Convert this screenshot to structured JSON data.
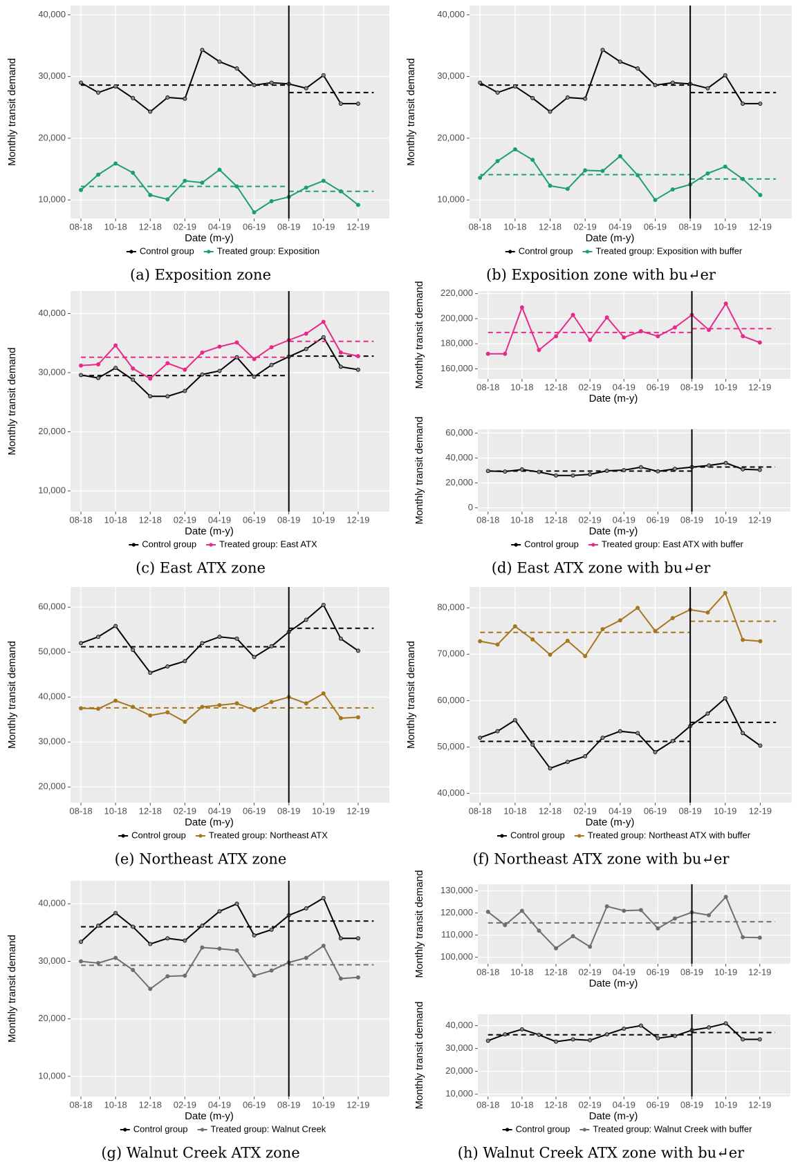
{
  "chart_data": [
    {
      "type": "line",
      "xlabel": "Date (m-y)",
      "ylabel": "Monthly transit demand",
      "caption": "(a) Exposition zone",
      "vline": "08-19",
      "grid": true,
      "categories": [
        "08-18",
        null,
        "10-18",
        null,
        "12-18",
        null,
        "02-19",
        null,
        "04-19",
        null,
        "06-19",
        null,
        "08-19",
        null,
        "10-19",
        null,
        "12-19"
      ],
      "ylim": [
        7000,
        41500
      ],
      "yticks": [
        {
          "value": 10000,
          "label": "10,000"
        },
        {
          "value": 20000,
          "label": "20,000"
        },
        {
          "value": 30000,
          "label": "30,000"
        },
        {
          "value": 40000,
          "label": "40,000"
        }
      ],
      "series": [
        {
          "name": "Control group",
          "color": "#000000",
          "mean_pre": 28600,
          "mean_post": 27400,
          "values": [
            29000,
            27400,
            28400,
            26500,
            24300,
            26600,
            26400,
            34300,
            32400,
            31300,
            28600,
            29000,
            28800,
            28100,
            30200,
            25600,
            25600
          ]
        },
        {
          "name": "Treated group: Exposition",
          "color": "#1b9e77",
          "mean_pre": 12200,
          "mean_post": 11400,
          "values": [
            11600,
            14100,
            15900,
            14400,
            10800,
            10100,
            13100,
            12800,
            14900,
            12200,
            8000,
            9800,
            10500,
            12000,
            13100,
            11400,
            9200
          ]
        }
      ]
    },
    {
      "type": "line",
      "xlabel": "Date (m-y)",
      "ylabel": "Monthly transit demand",
      "caption": "(b) Exposition zone with bu↵er",
      "vline": "08-19",
      "grid": true,
      "categories": [
        "08-18",
        null,
        "10-18",
        null,
        "12-18",
        null,
        "02-19",
        null,
        "04-19",
        null,
        "06-19",
        null,
        "08-19",
        null,
        "10-19",
        null,
        "12-19"
      ],
      "ylim": [
        7000,
        41500
      ],
      "yticks": [
        {
          "value": 10000,
          "label": "10,000"
        },
        {
          "value": 20000,
          "label": "20,000"
        },
        {
          "value": 30000,
          "label": "30,000"
        },
        {
          "value": 40000,
          "label": "40,000"
        }
      ],
      "series": [
        {
          "name": "Control group",
          "color": "#000000",
          "mean_pre": 28600,
          "mean_post": 27400,
          "values": [
            29000,
            27400,
            28400,
            26500,
            24300,
            26600,
            26400,
            34300,
            32400,
            31300,
            28600,
            29000,
            28800,
            28100,
            30200,
            25600,
            25600
          ]
        },
        {
          "name": "Treated group: Exposition with buffer",
          "color": "#1b9e77",
          "mean_pre": 14100,
          "mean_post": 13400,
          "values": [
            13600,
            16300,
            18200,
            16500,
            12300,
            11800,
            14800,
            14700,
            17100,
            14000,
            10000,
            11700,
            12500,
            14300,
            15400,
            13400,
            10800
          ]
        }
      ]
    },
    {
      "type": "line",
      "xlabel": "Date (m-y)",
      "ylabel": "Monthly transit demand",
      "caption": "(c) East ATX zone",
      "vline": "08-19",
      "grid": true,
      "categories": [
        "08-18",
        null,
        "10-18",
        null,
        "12-18",
        null,
        "02-19",
        null,
        "04-19",
        null,
        "06-19",
        null,
        "08-19",
        null,
        "10-19",
        null,
        "12-19"
      ],
      "ylim": [
        6500,
        43800
      ],
      "yticks": [
        {
          "value": 10000,
          "label": "10,000"
        },
        {
          "value": 20000,
          "label": "20,000"
        },
        {
          "value": 30000,
          "label": "30,000"
        },
        {
          "value": 40000,
          "label": "40,000"
        }
      ],
      "series": [
        {
          "name": "Control group",
          "color": "#000000",
          "mean_pre": 29500,
          "mean_post": 32800,
          "values": [
            29600,
            29100,
            30800,
            28800,
            26000,
            26000,
            26900,
            29700,
            30300,
            32600,
            29300,
            31300,
            32700,
            34000,
            36000,
            31000,
            30500
          ]
        },
        {
          "name": "Treated group: East ATX",
          "color": "#e7298a",
          "mean_pre": 32600,
          "mean_post": 35300,
          "values": [
            31200,
            31400,
            34600,
            30700,
            29000,
            31600,
            30500,
            33400,
            34400,
            35100,
            32300,
            34300,
            35500,
            36600,
            38600,
            33400,
            32800
          ]
        }
      ]
    },
    {
      "type": "line",
      "xlabel": "Date (m-y)",
      "ylabel": "Monthly transit demand",
      "vline": "08-19",
      "grid": true,
      "categories": [
        "08-18",
        null,
        "10-18",
        null,
        "12-18",
        null,
        "02-19",
        null,
        "04-19",
        null,
        "06-19",
        null,
        "08-19",
        null,
        "10-19",
        null,
        "12-19"
      ],
      "ylim": [
        152000,
        222000
      ],
      "yticks": [
        {
          "value": 160000,
          "label": "160,000"
        },
        {
          "value": 180000,
          "label": "180,000"
        },
        {
          "value": 200000,
          "label": "200,000"
        },
        {
          "value": 220000,
          "label": "220,000"
        }
      ],
      "series": [
        {
          "name": "Treated group: East ATX with buffer",
          "color": "#e7298a",
          "mean_pre": 189000,
          "mean_post": 192000,
          "values": [
            172000,
            172000,
            209000,
            175000,
            186000,
            203000,
            183000,
            201000,
            185000,
            190000,
            186000,
            193000,
            203000,
            191000,
            212000,
            186000,
            181000
          ]
        }
      ]
    },
    {
      "type": "line",
      "xlabel": "Date (m-y)",
      "ylabel": "Monthly transit demand",
      "caption": "(d) East ATX zone with bu↵er",
      "vline": "08-19",
      "grid": true,
      "categories": [
        "08-18",
        null,
        "10-18",
        null,
        "12-18",
        null,
        "02-19",
        null,
        "04-19",
        null,
        "06-19",
        null,
        "08-19",
        null,
        "10-19",
        null,
        "12-19"
      ],
      "ylim": [
        -3000,
        63000
      ],
      "yticks": [
        0,
        {
          "value": 20000,
          "label": "20,000"
        },
        {
          "value": 40000,
          "label": "40,000"
        },
        {
          "value": 60000,
          "label": "60,000"
        }
      ],
      "series": [
        {
          "name": "Control group",
          "color": "#000000",
          "mean_pre": 29500,
          "mean_post": 32800,
          "values": [
            29600,
            29100,
            30800,
            28800,
            26000,
            26000,
            26900,
            29700,
            30300,
            32600,
            29300,
            31300,
            32700,
            34000,
            36000,
            31000,
            30500
          ]
        }
      ]
    },
    {
      "type": "line",
      "xlabel": "Date (m-y)",
      "ylabel": "Monthly transit demand",
      "caption": "(e) Northeast ATX zone",
      "vline": "08-19",
      "grid": true,
      "categories": [
        "08-18",
        null,
        "10-18",
        null,
        "12-18",
        null,
        "02-19",
        null,
        "04-19",
        null,
        "06-19",
        null,
        "08-19",
        null,
        "10-19",
        null,
        "12-19"
      ],
      "ylim": [
        16500,
        64500
      ],
      "yticks": [
        {
          "value": 20000,
          "label": "20,000"
        },
        {
          "value": 30000,
          "label": "30,000"
        },
        {
          "value": 40000,
          "label": "40,000"
        },
        {
          "value": 50000,
          "label": "50,000"
        },
        {
          "value": 60000,
          "label": "60,000"
        }
      ],
      "series": [
        {
          "name": "Control group",
          "color": "#000000",
          "mean_pre": 51200,
          "mean_post": 55300,
          "values": [
            52000,
            53400,
            55800,
            50500,
            45400,
            46800,
            48000,
            52000,
            53400,
            53000,
            48900,
            51300,
            54500,
            57200,
            60500,
            53000,
            50300
          ]
        },
        {
          "name": "Treated group: Northeast ATX",
          "color": "#a6761d",
          "mean_pre": 37600,
          "mean_post": 37600,
          "values": [
            37500,
            37400,
            39200,
            37800,
            35900,
            36600,
            34500,
            37800,
            38200,
            38600,
            37100,
            38900,
            40000,
            38600,
            40800,
            35300,
            35500
          ]
        }
      ]
    },
    {
      "type": "line",
      "xlabel": "Date (m-y)",
      "ylabel": "Monthly transit demand",
      "caption": "(f) Northeast ATX zone with bu↵er",
      "vline": "08-19",
      "grid": true,
      "categories": [
        "08-18",
        null,
        "10-18",
        null,
        "12-18",
        null,
        "02-19",
        null,
        "04-19",
        null,
        "06-19",
        null,
        "08-19",
        null,
        "10-19",
        null,
        "12-19"
      ],
      "ylim": [
        38000,
        84500
      ],
      "yticks": [
        {
          "value": 40000,
          "label": "40,000"
        },
        {
          "value": 50000,
          "label": "50,000"
        },
        {
          "value": 60000,
          "label": "60,000"
        },
        {
          "value": 70000,
          "label": "70,000"
        },
        {
          "value": 80000,
          "label": "80,000"
        }
      ],
      "series": [
        {
          "name": "Control group",
          "color": "#000000",
          "mean_pre": 51200,
          "mean_post": 55300,
          "values": [
            52000,
            53400,
            55800,
            50500,
            45400,
            46800,
            48000,
            52000,
            53400,
            53000,
            48900,
            51300,
            54500,
            57200,
            60500,
            53000,
            50300
          ]
        },
        {
          "name": "Treated group: Northeast ATX with buffer",
          "color": "#a6761d",
          "mean_pre": 74700,
          "mean_post": 77100,
          "values": [
            72800,
            72100,
            76000,
            73200,
            69900,
            72900,
            69600,
            75400,
            77300,
            80000,
            75000,
            77800,
            79600,
            79000,
            83200,
            73100,
            72800
          ]
        }
      ]
    },
    {
      "type": "line",
      "xlabel": "Date (m-y)",
      "ylabel": "Monthly transit demand",
      "caption": "(g) Walnut Creek ATX zone",
      "vline": "08-19",
      "grid": true,
      "categories": [
        "08-18",
        null,
        "10-18",
        null,
        "12-18",
        null,
        "02-19",
        null,
        "04-19",
        null,
        "06-19",
        null,
        "08-19",
        null,
        "10-19",
        null,
        "12-19"
      ],
      "ylim": [
        6500,
        44000
      ],
      "yticks": [
        {
          "value": 10000,
          "label": "10,000"
        },
        {
          "value": 20000,
          "label": "20,000"
        },
        {
          "value": 30000,
          "label": "30,000"
        },
        {
          "value": 40000,
          "label": "40,000"
        }
      ],
      "series": [
        {
          "name": "Control group",
          "color": "#000000",
          "mean_pre": 36000,
          "mean_post": 37000,
          "values": [
            33400,
            36200,
            38400,
            36000,
            33000,
            34000,
            33600,
            36200,
            38700,
            40000,
            34500,
            35500,
            38000,
            39200,
            41000,
            34000,
            34000
          ]
        },
        {
          "name": "Treated group: Walnut Creek",
          "color": "#6e6e6e",
          "mean_pre": 29300,
          "mean_post": 29400,
          "values": [
            30000,
            29700,
            30600,
            28500,
            25200,
            27400,
            27500,
            32400,
            32200,
            31900,
            27500,
            28400,
            29800,
            30600,
            32700,
            27000,
            27200
          ]
        }
      ]
    },
    {
      "type": "line",
      "xlabel": "Date (m-y)",
      "ylabel": "Monthly transit demand",
      "vline": "08-19",
      "grid": true,
      "categories": [
        "08-18",
        null,
        "10-18",
        null,
        "12-18",
        null,
        "02-19",
        null,
        "04-19",
        null,
        "06-19",
        null,
        "08-19",
        null,
        "10-19",
        null,
        "12-19"
      ],
      "ylim": [
        97000,
        133000
      ],
      "yticks": [
        {
          "value": 100000,
          "label": "100,000"
        },
        {
          "value": 110000,
          "label": "110,000"
        },
        {
          "value": 120000,
          "label": "120,000"
        },
        {
          "value": 130000,
          "label": "130,000"
        }
      ],
      "series": [
        {
          "name": "Treated group: Walnut Creek with buffer",
          "color": "#6e6e6e",
          "mean_pre": 115500,
          "mean_post": 116000,
          "values": [
            120500,
            114500,
            121000,
            112000,
            104000,
            109500,
            104700,
            123000,
            121000,
            121300,
            113000,
            117500,
            120300,
            119000,
            127300,
            109000,
            108800
          ]
        }
      ]
    },
    {
      "type": "line",
      "xlabel": "Date (m-y)",
      "ylabel": "Monthly transit demand",
      "caption": "(h) Walnut Creek ATX zone with bu↵er",
      "vline": "08-19",
      "grid": true,
      "categories": [
        "08-18",
        null,
        "10-18",
        null,
        "12-18",
        null,
        "02-19",
        null,
        "04-19",
        null,
        "06-19",
        null,
        "08-19",
        null,
        "10-19",
        null,
        "12-19"
      ],
      "ylim": [
        9000,
        45000
      ],
      "yticks": [
        {
          "value": 10000,
          "label": "10,000"
        },
        {
          "value": 20000,
          "label": "20,000"
        },
        {
          "value": 30000,
          "label": "30,000"
        },
        {
          "value": 40000,
          "label": "40,000"
        }
      ],
      "series": [
        {
          "name": "Control group",
          "color": "#000000",
          "mean_pre": 36000,
          "mean_post": 37000,
          "values": [
            33400,
            36200,
            38400,
            36000,
            33000,
            34000,
            33600,
            36200,
            38700,
            40000,
            34500,
            35500,
            38000,
            39200,
            41000,
            34000,
            34000
          ]
        }
      ]
    }
  ]
}
